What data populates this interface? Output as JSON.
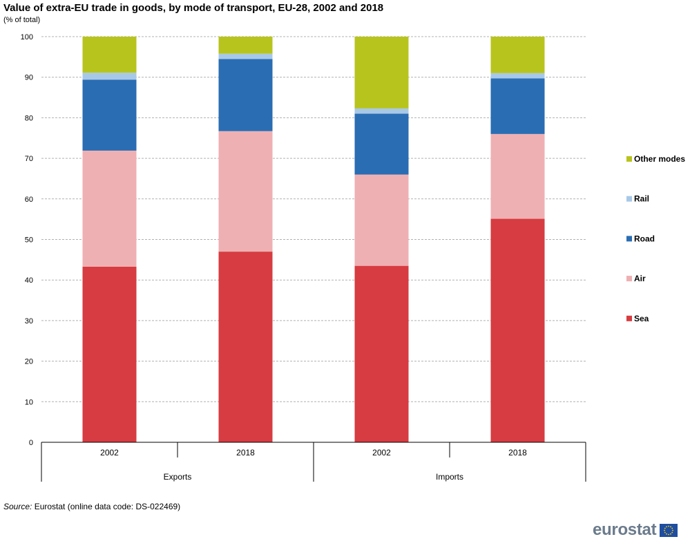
{
  "chart_data": {
    "type": "bar",
    "stacked": true,
    "title": "Value of extra-EU trade in goods, by mode of transport, EU-28, 2002 and 2018",
    "subtitle": "(% of total)",
    "categories": [
      "2002",
      "2018",
      "2002",
      "2018"
    ],
    "groups": [
      {
        "label": "Exports",
        "categories": [
          "2002",
          "2018"
        ]
      },
      {
        "label": "Imports",
        "categories": [
          "2002",
          "2018"
        ]
      }
    ],
    "series": [
      {
        "name": "Sea",
        "color": "#d63c41",
        "values": [
          43.3,
          47.0,
          43.5,
          55.1
        ]
      },
      {
        "name": "Air",
        "color": "#efb0b3",
        "values": [
          28.6,
          29.7,
          22.5,
          20.9
        ]
      },
      {
        "name": "Road",
        "color": "#2a6db3",
        "values": [
          17.5,
          17.8,
          15.0,
          13.7
        ]
      },
      {
        "name": "Rail",
        "color": "#a8c8e8",
        "values": [
          1.7,
          1.3,
          1.3,
          1.3
        ]
      },
      {
        "name": "Other modes",
        "color": "#b8c41e",
        "values": [
          8.9,
          4.2,
          17.7,
          9.0
        ]
      }
    ],
    "ylim": [
      0,
      100
    ],
    "yticks": [
      "0",
      "10",
      "20",
      "30",
      "40",
      "50",
      "60",
      "70",
      "80",
      "90",
      "100"
    ],
    "grid": true,
    "legend_position": "right"
  },
  "source": {
    "label": "Source:",
    "text": "Eurostat (online data code: DS-022469)"
  },
  "logo": {
    "text": "eurostat"
  }
}
